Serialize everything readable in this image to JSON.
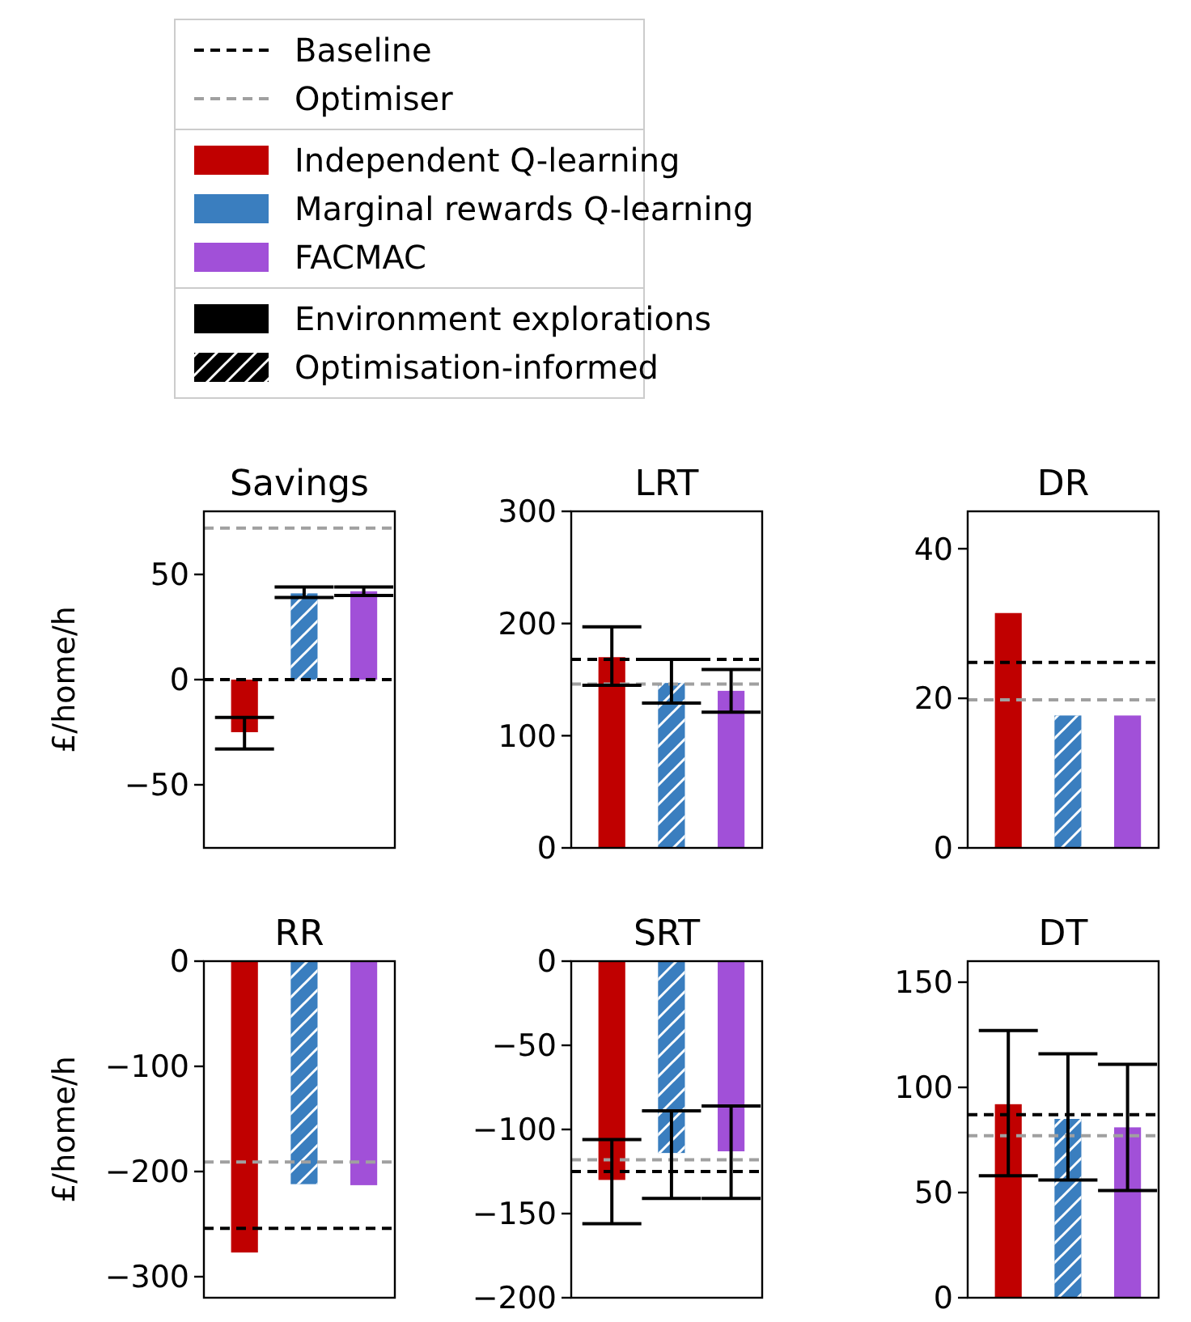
{
  "chart_data": [
    {
      "type": "bar",
      "title": "Savings",
      "ylabel": "£/home/h",
      "categories": [
        null
      ],
      "ylim": [
        -80,
        80
      ],
      "yticks": [
        -50,
        0,
        50
      ],
      "legend": "top",
      "tick_labels": "y",
      "series": [
        {
          "name": "Independent Q-learning",
          "color": "#c00000",
          "values": [
            -25
          ],
          "errors": [
            [
              -33,
              -18
            ]
          ]
        },
        {
          "name": "Marginal rewards Q-learning",
          "color": "#3a7ebf",
          "values": [
            41
          ],
          "errors": [
            [
              39,
              44
            ]
          ]
        },
        {
          "name": "FACMAC",
          "color": "#a150d8",
          "values": [
            42
          ],
          "errors": [
            [
              40,
              44
            ]
          ]
        }
      ],
      "ref_lines": [
        {
          "axis": "y",
          "value": 0,
          "label": "Baseline",
          "color": "#000000",
          "line_style": "dashed"
        },
        {
          "axis": "y",
          "value": 72,
          "label": "Optimiser",
          "color": "#a0a0a0",
          "line_style": "dashed"
        }
      ],
      "annotations": [
        "Environment explorations",
        "Optimisation-informed"
      ]
    },
    {
      "type": "bar",
      "title": "LRT",
      "categories": [
        null
      ],
      "ylim": [
        0,
        300
      ],
      "yticks": [
        0,
        100,
        200,
        300
      ],
      "tick_labels": "y",
      "series": [
        {
          "color": "#c00000",
          "values": [
            170
          ],
          "errors": [
            [
              145,
              197
            ]
          ]
        },
        {
          "color": "#3a7ebf",
          "values": [
            147
          ],
          "errors": [
            [
              129,
              168
            ]
          ]
        },
        {
          "color": "#a150d8",
          "values": [
            140
          ],
          "errors": [
            [
              121,
              159
            ]
          ]
        }
      ],
      "ref_lines": [
        {
          "axis": "y",
          "value": 168,
          "color": "#000000",
          "line_style": "dashed"
        },
        {
          "axis": "y",
          "value": 146,
          "color": "#a0a0a0",
          "line_style": "dashed"
        }
      ]
    },
    {
      "type": "bar",
      "title": "DR",
      "categories": [
        null
      ],
      "ylim": [
        0,
        45
      ],
      "yticks": [
        0,
        20,
        40
      ],
      "tick_labels": "y",
      "series": [
        {
          "color": "#c00000",
          "values": [
            31.4
          ]
        },
        {
          "color": "#3a7ebf",
          "values": [
            17.7
          ]
        },
        {
          "color": "#a150d8",
          "values": [
            17.7
          ]
        }
      ],
      "ref_lines": [
        {
          "axis": "y",
          "value": 24.8,
          "color": "#000000",
          "line_style": "dashed"
        },
        {
          "axis": "y",
          "value": 19.8,
          "color": "#a0a0a0",
          "line_style": "dashed"
        }
      ]
    },
    {
      "type": "bar",
      "title": "RR",
      "ylabel": "£/home/h",
      "categories": [
        null
      ],
      "ylim": [
        -320,
        0
      ],
      "yticks": [
        -300,
        -200,
        -100,
        0
      ],
      "tick_labels": "y",
      "series": [
        {
          "color": "#c00000",
          "values": [
            -277
          ]
        },
        {
          "color": "#3a7ebf",
          "values": [
            -212
          ]
        },
        {
          "color": "#a150d8",
          "values": [
            -213
          ]
        }
      ],
      "ref_lines": [
        {
          "axis": "y",
          "value": -254,
          "color": "#000000",
          "line_style": "dashed"
        },
        {
          "axis": "y",
          "value": -191,
          "color": "#a0a0a0",
          "line_style": "dashed"
        }
      ]
    },
    {
      "type": "bar",
      "title": "SRT",
      "categories": [
        null
      ],
      "ylim": [
        -200,
        0
      ],
      "yticks": [
        -200,
        -150,
        -100,
        -50,
        0
      ],
      "tick_labels": "y",
      "series": [
        {
          "color": "#c00000",
          "values": [
            -130
          ],
          "errors": [
            [
              -156,
              -106
            ]
          ]
        },
        {
          "color": "#3a7ebf",
          "values": [
            -114
          ],
          "errors": [
            [
              -141,
              -89
            ]
          ]
        },
        {
          "color": "#a150d8",
          "values": [
            -113
          ],
          "errors": [
            [
              -141,
              -86
            ]
          ]
        }
      ],
      "ref_lines": [
        {
          "axis": "y",
          "value": -125,
          "color": "#000000",
          "line_style": "dashed"
        },
        {
          "axis": "y",
          "value": -118,
          "color": "#a0a0a0",
          "line_style": "dashed"
        }
      ]
    },
    {
      "type": "bar",
      "title": "DT",
      "categories": [
        null
      ],
      "ylim": [
        0,
        160
      ],
      "yticks": [
        0,
        50,
        100,
        150
      ],
      "tick_labels": "y",
      "series": [
        {
          "color": "#c00000",
          "values": [
            92
          ],
          "errors": [
            [
              58,
              127
            ]
          ]
        },
        {
          "color": "#3a7ebf",
          "values": [
            85
          ],
          "errors": [
            [
              56,
              116
            ]
          ]
        },
        {
          "color": "#a150d8",
          "values": [
            81
          ],
          "errors": [
            [
              51,
              111
            ]
          ]
        }
      ],
      "ref_lines": [
        {
          "axis": "y",
          "value": 87,
          "color": "#000000",
          "line_style": "dashed"
        },
        {
          "axis": "y",
          "value": 77,
          "color": "#a0a0a0",
          "line_style": "dashed"
        }
      ]
    }
  ]
}
